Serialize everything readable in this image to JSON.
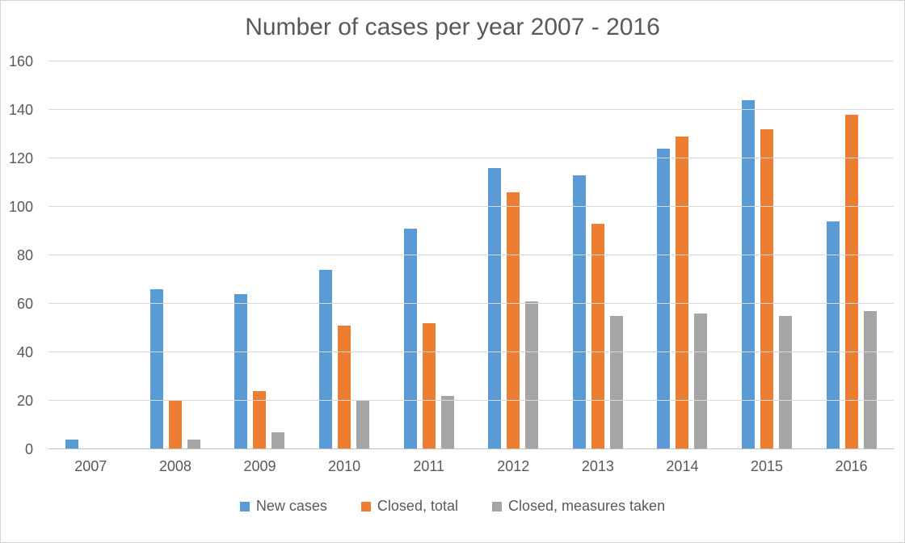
{
  "chart_data": {
    "type": "bar",
    "title": "Number of cases per year 2007 - 2016",
    "categories": [
      "2007",
      "2008",
      "2009",
      "2010",
      "2011",
      "2012",
      "2013",
      "2014",
      "2015",
      "2016"
    ],
    "series": [
      {
        "name": "New cases",
        "color": "#5B9BD5",
        "values": [
          4,
          66,
          64,
          74,
          91,
          116,
          113,
          124,
          144,
          94
        ]
      },
      {
        "name": "Closed, total",
        "color": "#ED7D31",
        "values": [
          0,
          20,
          24,
          51,
          52,
          106,
          93,
          129,
          132,
          138
        ]
      },
      {
        "name": "Closed, measures taken",
        "color": "#A5A5A5",
        "values": [
          0,
          4,
          7,
          20,
          22,
          61,
          55,
          56,
          55,
          57
        ]
      }
    ],
    "xlabel": "",
    "ylabel": "",
    "ylim": [
      0,
      160
    ],
    "yticks": [
      0,
      20,
      40,
      60,
      80,
      100,
      120,
      140,
      160
    ],
    "grid": true,
    "legend_position": "bottom"
  },
  "colors": {
    "title_text": "#595959",
    "tick_text": "#595959",
    "gridline": "#d9d9d9",
    "axis_line": "#bfbfbf",
    "chart_border": "#d6d6d6",
    "background": "#ffffff"
  }
}
